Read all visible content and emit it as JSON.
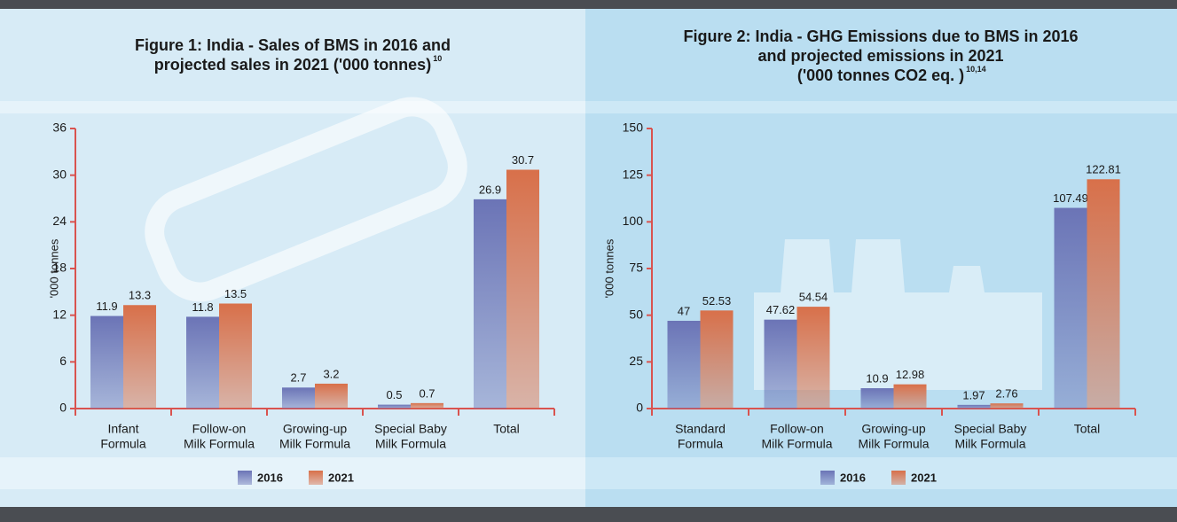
{
  "chart_data": [
    {
      "type": "bar",
      "title": [
        "Figure 1: India - Sales of BMS in 2016 and",
        "projected sales in 2021  ('000 tonnes)"
      ],
      "title_superscript": "10",
      "y_label": "'000 tonnes",
      "categories": [
        [
          "Infant",
          "Formula"
        ],
        [
          "Follow-on",
          "Milk Formula"
        ],
        [
          "Growing-up",
          "Milk Formula"
        ],
        [
          "Special Baby",
          "Milk Formula"
        ],
        [
          "Total"
        ]
      ],
      "series": [
        {
          "name": "2016",
          "color": "#6b74b6",
          "values": [
            11.9,
            11.8,
            2.7,
            0.5,
            26.9
          ]
        },
        {
          "name": "2021",
          "color": "#d8704a",
          "values": [
            13.3,
            13.5,
            3.2,
            0.7,
            30.7
          ]
        }
      ],
      "ylim": [
        0,
        36
      ],
      "yticks": [
        0,
        6,
        12,
        18,
        24,
        30,
        36
      ]
    },
    {
      "type": "bar",
      "title": [
        "Figure 2: India - GHG Emissions due to BMS in 2016",
        "and projected emissions in 2021",
        "('000 tonnes CO2 eq. )"
      ],
      "title_superscript": "10,14",
      "y_label": "'000 tonnes",
      "categories": [
        [
          "Standard",
          "Formula"
        ],
        [
          "Follow-on",
          "Milk Formula"
        ],
        [
          "Growing-up",
          "Milk Formula"
        ],
        [
          "Special Baby",
          "Milk Formula"
        ],
        [
          "Total"
        ]
      ],
      "series": [
        {
          "name": "2016",
          "color": "#6b74b6",
          "values": [
            47,
            47.62,
            10.9,
            1.97,
            107.49
          ]
        },
        {
          "name": "2021",
          "color": "#d8704a",
          "values": [
            52.53,
            54.54,
            12.98,
            2.76,
            122.81
          ]
        }
      ],
      "ylim": [
        0,
        150
      ],
      "yticks": [
        0,
        25,
        50,
        75,
        100,
        125,
        150
      ]
    }
  ]
}
